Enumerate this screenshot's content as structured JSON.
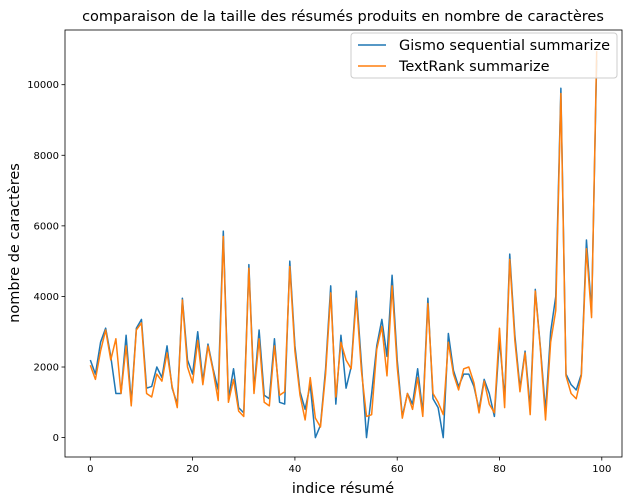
{
  "chart_data": {
    "type": "line",
    "title": "comparaison de la taille des résumés produits en nombre de caractères",
    "xlabel": "indice résumé",
    "ylabel": "nombre de caractères",
    "xlim": [
      -4.95,
      103.95
    ],
    "ylim": [
      -550,
      11550
    ],
    "xticks": [
      0,
      20,
      40,
      60,
      80,
      100
    ],
    "yticks": [
      0,
      2000,
      4000,
      6000,
      8000,
      10000
    ],
    "grid": false,
    "legend_position": "top-right",
    "series": [
      {
        "name": "Gismo sequential summarize",
        "color": "#1f77b4",
        "x": [
          0,
          1,
          2,
          3,
          4,
          5,
          6,
          7,
          8,
          9,
          10,
          11,
          12,
          13,
          14,
          15,
          16,
          17,
          18,
          19,
          20,
          21,
          22,
          23,
          24,
          25,
          26,
          27,
          28,
          29,
          30,
          31,
          32,
          33,
          34,
          35,
          36,
          37,
          38,
          39,
          40,
          41,
          42,
          43,
          44,
          45,
          46,
          47,
          48,
          49,
          50,
          51,
          52,
          53,
          54,
          55,
          56,
          57,
          58,
          59,
          60,
          61,
          62,
          63,
          64,
          65,
          66,
          67,
          68,
          69,
          70,
          71,
          72,
          73,
          74,
          75,
          76,
          77,
          78,
          79,
          80,
          81,
          82,
          83,
          84,
          85,
          86,
          87,
          88,
          89,
          90,
          91,
          92,
          93,
          94,
          95,
          96,
          97,
          98,
          99
        ],
        "values": [
          2200,
          1800,
          2700,
          3100,
          2300,
          1250,
          1250,
          2900,
          1000,
          3100,
          3350,
          1400,
          1450,
          2000,
          1700,
          2600,
          1400,
          950,
          3950,
          2200,
          1800,
          3000,
          1600,
          2650,
          1950,
          1350,
          5850,
          1100,
          1950,
          850,
          700,
          4900,
          1350,
          3050,
          1200,
          1100,
          2800,
          1000,
          950,
          5000,
          2600,
          1300,
          800,
          1500,
          0,
          350,
          1950,
          4300,
          950,
          2900,
          1400,
          2000,
          4150,
          2100,
          0,
          1250,
          2600,
          3350,
          2300,
          4600,
          2200,
          600,
          1250,
          950,
          1950,
          700,
          3950,
          1100,
          850,
          0,
          2950,
          1900,
          1450,
          1800,
          1800,
          1450,
          800,
          1650,
          1250,
          600,
          2800,
          1100,
          5200,
          2900,
          1400,
          2450,
          850,
          4200,
          2550,
          750,
          3000,
          4000,
          9900,
          1800,
          1500,
          1350,
          1800,
          5600,
          3550,
          10700
        ]
      },
      {
        "name": "TextRank summarize",
        "color": "#ff7f0e",
        "x": [
          0,
          1,
          2,
          3,
          4,
          5,
          6,
          7,
          8,
          9,
          10,
          11,
          12,
          13,
          14,
          15,
          16,
          17,
          18,
          19,
          20,
          21,
          22,
          23,
          24,
          25,
          26,
          27,
          28,
          29,
          30,
          31,
          32,
          33,
          34,
          35,
          36,
          37,
          38,
          39,
          40,
          41,
          42,
          43,
          44,
          45,
          46,
          47,
          48,
          49,
          50,
          51,
          52,
          53,
          54,
          55,
          56,
          57,
          58,
          59,
          60,
          61,
          62,
          63,
          64,
          65,
          66,
          67,
          68,
          69,
          70,
          71,
          72,
          73,
          74,
          75,
          76,
          77,
          78,
          79,
          80,
          81,
          82,
          83,
          84,
          85,
          86,
          87,
          88,
          89,
          90,
          91,
          92,
          93,
          94,
          95,
          96,
          97,
          98,
          99
        ],
        "values": [
          2050,
          1650,
          2450,
          3050,
          2200,
          2800,
          1250,
          2600,
          900,
          3050,
          3250,
          1250,
          1150,
          1800,
          1600,
          2400,
          1450,
          850,
          3900,
          2000,
          1550,
          2750,
          1500,
          2600,
          1900,
          1050,
          5700,
          1000,
          1650,
          750,
          600,
          4800,
          1250,
          2800,
          1000,
          900,
          2600,
          1200,
          1300,
          4850,
          2450,
          1200,
          500,
          1700,
          550,
          300,
          1800,
          4100,
          1150,
          2700,
          2200,
          1950,
          3950,
          1900,
          600,
          650,
          2500,
          3150,
          1750,
          4300,
          2000,
          550,
          1250,
          800,
          1700,
          600,
          3800,
          1250,
          1000,
          650,
          2700,
          1800,
          1350,
          1950,
          2000,
          1550,
          700,
          1600,
          950,
          700,
          3100,
          850,
          5050,
          2750,
          1300,
          2400,
          650,
          4150,
          2500,
          500,
          2700,
          3600,
          9750,
          1750,
          1250,
          1100,
          1750,
          5350,
          3400,
          10950
        ]
      }
    ]
  }
}
